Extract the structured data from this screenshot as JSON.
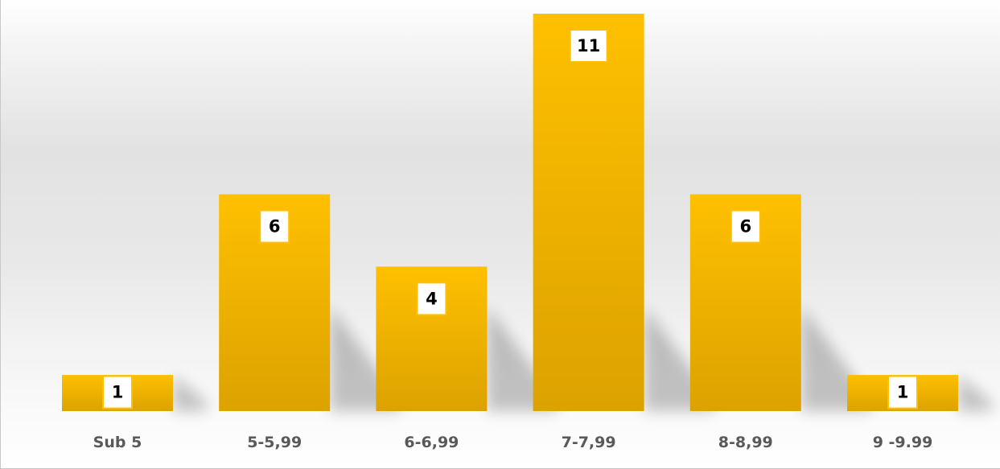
{
  "chart_data": {
    "type": "bar",
    "categories": [
      "Sub 5",
      "5-5,99",
      "6-6,99",
      "7-7,99",
      "8-8,99",
      "9 -9.99"
    ],
    "values": [
      1,
      6,
      4,
      11,
      6,
      1
    ],
    "data_labels": [
      "1",
      "6",
      "4",
      "11",
      "6",
      "1"
    ],
    "title": "",
    "xlabel": "",
    "ylabel": "",
    "ylim": [
      0,
      11
    ],
    "grid": false,
    "legend": "none",
    "colors": {
      "bar_top": "#FFC000",
      "bar_bottom": "#DCA200",
      "label_border": "#FFC000",
      "tick_text": "#595959"
    }
  }
}
